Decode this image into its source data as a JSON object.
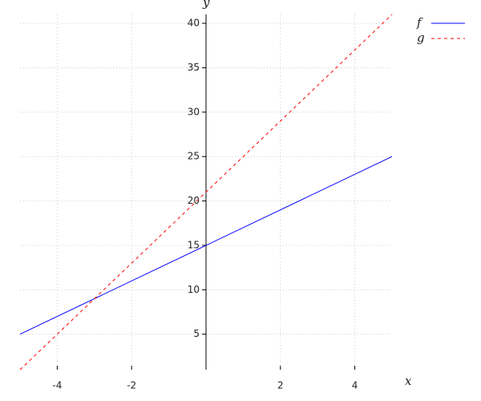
{
  "chart_data": {
    "type": "line",
    "x_label": "x",
    "y_label": "y",
    "x": [
      -5,
      5
    ],
    "series": [
      {
        "name": "f",
        "color": "#0000ff",
        "dash": "solid",
        "values": [
          5,
          25
        ]
      },
      {
        "name": "g",
        "color": "#ff0000",
        "dash": "dashed",
        "values": [
          1,
          41
        ]
      }
    ],
    "xlim": [
      -5,
      5
    ],
    "ylim": [
      1,
      41
    ],
    "xticks": [
      -4,
      -2,
      2,
      4
    ],
    "yticks": [
      5,
      10,
      15,
      20,
      25,
      30,
      35,
      40
    ],
    "grid": true,
    "legend": "top-right"
  }
}
